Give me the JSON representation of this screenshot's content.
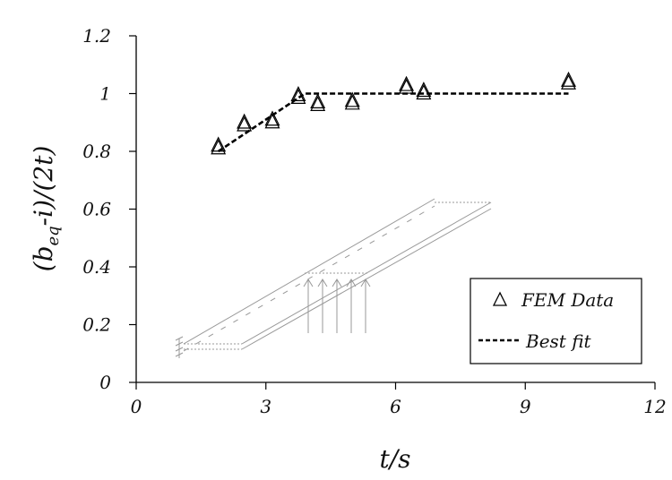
{
  "chart_data": {
    "type": "scatter",
    "xlabel": "t/s",
    "ylabel": "(b_eq-i)/(2t)",
    "xlim": [
      0,
      12
    ],
    "ylim": [
      0,
      1.2
    ],
    "x_ticks": [
      "0",
      "3",
      "6",
      "9",
      "12"
    ],
    "y_ticks": [
      "0",
      "0.2",
      "0.4",
      "0.6",
      "0.8",
      "1",
      "1.2"
    ],
    "grid": false,
    "legend_position": "bottom-right",
    "series": [
      {
        "name": "FEM Data",
        "marker": "triangle",
        "points": [
          {
            "x": 1.9,
            "y": 0.81
          },
          {
            "x": 2.5,
            "y": 0.89
          },
          {
            "x": 3.15,
            "y": 0.9
          },
          {
            "x": 3.75,
            "y": 0.985
          },
          {
            "x": 4.2,
            "y": 0.96
          },
          {
            "x": 5.0,
            "y": 0.965
          },
          {
            "x": 6.25,
            "y": 1.02
          },
          {
            "x": 6.65,
            "y": 1.0
          },
          {
            "x": 10.0,
            "y": 1.035
          }
        ]
      },
      {
        "name": "Best fit",
        "style": "dashed",
        "points": [
          {
            "x": 1.9,
            "y": 0.8
          },
          {
            "x": 3.9,
            "y": 1.0
          },
          {
            "x": 10.0,
            "y": 1.0
          }
        ]
      }
    ]
  }
}
